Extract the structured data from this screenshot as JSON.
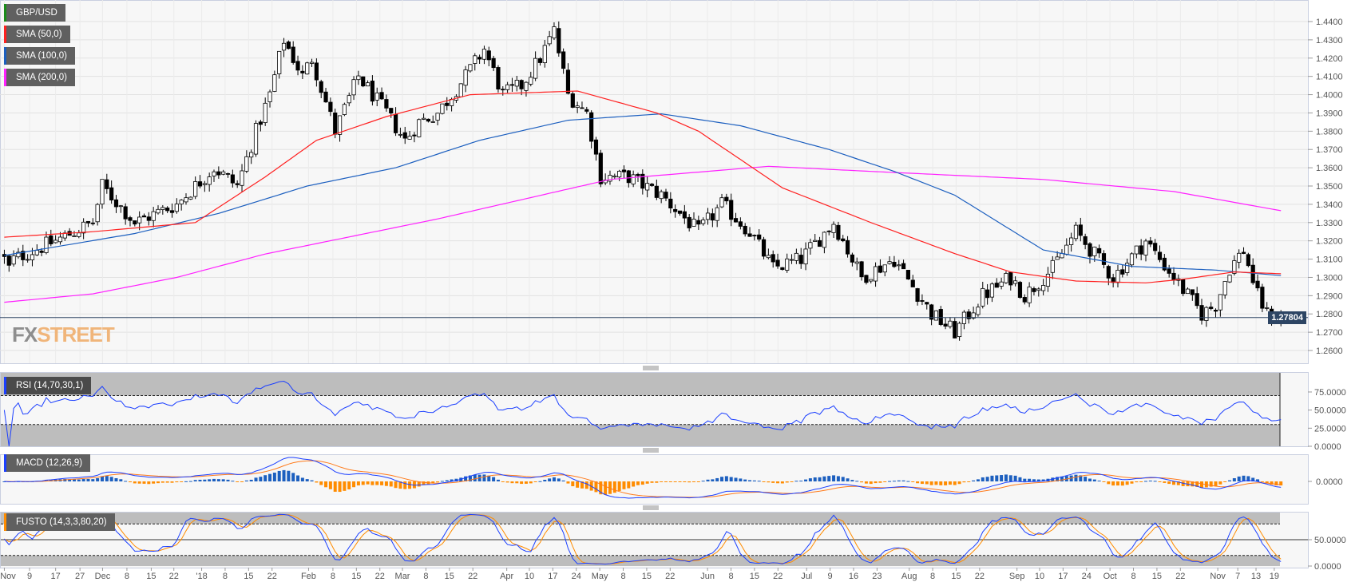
{
  "legend": {
    "symbol": {
      "label": "GBP/USD",
      "color": "#1a8c1a"
    },
    "sma50": {
      "label": "SMA (50,0)",
      "color": "#ff2020"
    },
    "sma100": {
      "label": "SMA (100,0)",
      "color": "#1c5fbf"
    },
    "sma200": {
      "label": "SMA (200,0)",
      "color": "#ff20ff"
    }
  },
  "watermark": {
    "fx": "FX",
    "street": "STREET"
  },
  "current_price": "1.27804",
  "indicators": {
    "rsi": {
      "label": "RSI (14,70,30,1)",
      "color": "#1b3fff",
      "ticks": [
        "75.0000",
        "50.0000",
        "25.0000",
        "0.0000"
      ]
    },
    "macd": {
      "label": "MACD (12,26,9)",
      "color": "#1b3fff",
      "ticks": [
        "0.0000"
      ]
    },
    "fusto": {
      "label": "FUSTO (14,3,3,80,20)",
      "color": "#ff8c00",
      "ticks": [
        "50.0000",
        "0.0000"
      ]
    }
  },
  "chart_data": {
    "type": "candlestick",
    "title": "GBP/USD",
    "ylim": [
      1.255,
      1.446
    ],
    "price_ticks": [
      "1.4400",
      "1.4300",
      "1.4200",
      "1.4100",
      "1.4000",
      "1.3900",
      "1.3800",
      "1.3700",
      "1.3600",
      "1.3500",
      "1.3400",
      "1.3300",
      "1.3200",
      "1.3100",
      "1.3000",
      "1.2900",
      "1.2800",
      "1.2700",
      "1.2600"
    ],
    "x_tick_labels": [
      "Nov",
      "9",
      "17",
      "27",
      "Dec",
      "8",
      "15",
      "22",
      "'18",
      "8",
      "15",
      "22",
      "Feb",
      "8",
      "15",
      "22",
      "Mar",
      "8",
      "15",
      "22",
      "Apr",
      "10",
      "17",
      "24",
      "May",
      "8",
      "15",
      "22",
      "Jun",
      "8",
      "15",
      "22",
      "Jul",
      "9",
      "16",
      "23",
      "Aug",
      "8",
      "15",
      "22",
      "Sep",
      "10",
      "17",
      "24",
      "Oct",
      "8",
      "15",
      "22",
      "Nov",
      "7",
      "13",
      "19"
    ],
    "candle_count": 275,
    "close_path_keypoints": [
      [
        0,
        1.31
      ],
      [
        1,
        1.305
      ],
      [
        2,
        1.31
      ],
      [
        11,
        1.32
      ],
      [
        19,
        1.33
      ],
      [
        21,
        1.35
      ],
      [
        28,
        1.33
      ],
      [
        37,
        1.34
      ],
      [
        45,
        1.36
      ],
      [
        50,
        1.35
      ],
      [
        54,
        1.38
      ],
      [
        57,
        1.4
      ],
      [
        60,
        1.43
      ],
      [
        64,
        1.41
      ],
      [
        66,
        1.42
      ],
      [
        71,
        1.38
      ],
      [
        76,
        1.41
      ],
      [
        82,
        1.39
      ],
      [
        86,
        1.375
      ],
      [
        89,
        1.385
      ],
      [
        93,
        1.39
      ],
      [
        99,
        1.41
      ],
      [
        103,
        1.425
      ],
      [
        107,
        1.4
      ],
      [
        111,
        1.405
      ],
      [
        115,
        1.42
      ],
      [
        118,
        1.435
      ],
      [
        121,
        1.4
      ],
      [
        125,
        1.39
      ],
      [
        128,
        1.355
      ],
      [
        134,
        1.355
      ],
      [
        141,
        1.345
      ],
      [
        149,
        1.325
      ],
      [
        154,
        1.34
      ],
      [
        160,
        1.325
      ],
      [
        165,
        1.305
      ],
      [
        171,
        1.31
      ],
      [
        178,
        1.33
      ],
      [
        184,
        1.3
      ],
      [
        191,
        1.31
      ],
      [
        199,
        1.28
      ],
      [
        204,
        1.27
      ],
      [
        210,
        1.29
      ],
      [
        216,
        1.3
      ],
      [
        219,
        1.29
      ],
      [
        225,
        1.305
      ],
      [
        230,
        1.325
      ],
      [
        238,
        1.3
      ],
      [
        245,
        1.32
      ],
      [
        251,
        1.3
      ],
      [
        257,
        1.28
      ],
      [
        260,
        1.285
      ],
      [
        263,
        1.305
      ],
      [
        266,
        1.315
      ],
      [
        269,
        1.29
      ],
      [
        271,
        1.28
      ],
      [
        274,
        1.278
      ]
    ],
    "sma50_keypoints": [
      [
        0,
        1.322
      ],
      [
        19,
        1.325
      ],
      [
        41,
        1.33
      ],
      [
        56,
        1.355
      ],
      [
        67,
        1.375
      ],
      [
        82,
        1.388
      ],
      [
        100,
        1.4
      ],
      [
        123,
        1.402
      ],
      [
        140,
        1.39
      ],
      [
        149,
        1.38
      ],
      [
        167,
        1.349
      ],
      [
        186,
        1.33
      ],
      [
        204,
        1.313
      ],
      [
        216,
        1.303
      ],
      [
        230,
        1.298
      ],
      [
        245,
        1.297
      ],
      [
        253,
        1.299
      ],
      [
        264,
        1.303
      ],
      [
        274,
        1.302
      ]
    ],
    "sma100_keypoints": [
      [
        0,
        1.312
      ],
      [
        28,
        1.324
      ],
      [
        46,
        1.335
      ],
      [
        65,
        1.35
      ],
      [
        84,
        1.36
      ],
      [
        102,
        1.375
      ],
      [
        121,
        1.386
      ],
      [
        141,
        1.3895
      ],
      [
        158,
        1.383
      ],
      [
        177,
        1.37
      ],
      [
        191,
        1.358
      ],
      [
        204,
        1.345
      ],
      [
        223,
        1.315
      ],
      [
        242,
        1.306
      ],
      [
        260,
        1.304
      ],
      [
        274,
        1.301
      ]
    ],
    "sma200_keypoints": [
      [
        0,
        1.2864
      ],
      [
        19,
        1.291
      ],
      [
        37,
        1.3
      ],
      [
        56,
        1.3128
      ],
      [
        93,
        1.332
      ],
      [
        130,
        1.3536
      ],
      [
        164,
        1.3608
      ],
      [
        186,
        1.358
      ],
      [
        223,
        1.3536
      ],
      [
        251,
        1.347
      ],
      [
        274,
        1.3365
      ]
    ],
    "rsi_levels": [
      70,
      30
    ],
    "fusto_levels": [
      80,
      20
    ]
  }
}
